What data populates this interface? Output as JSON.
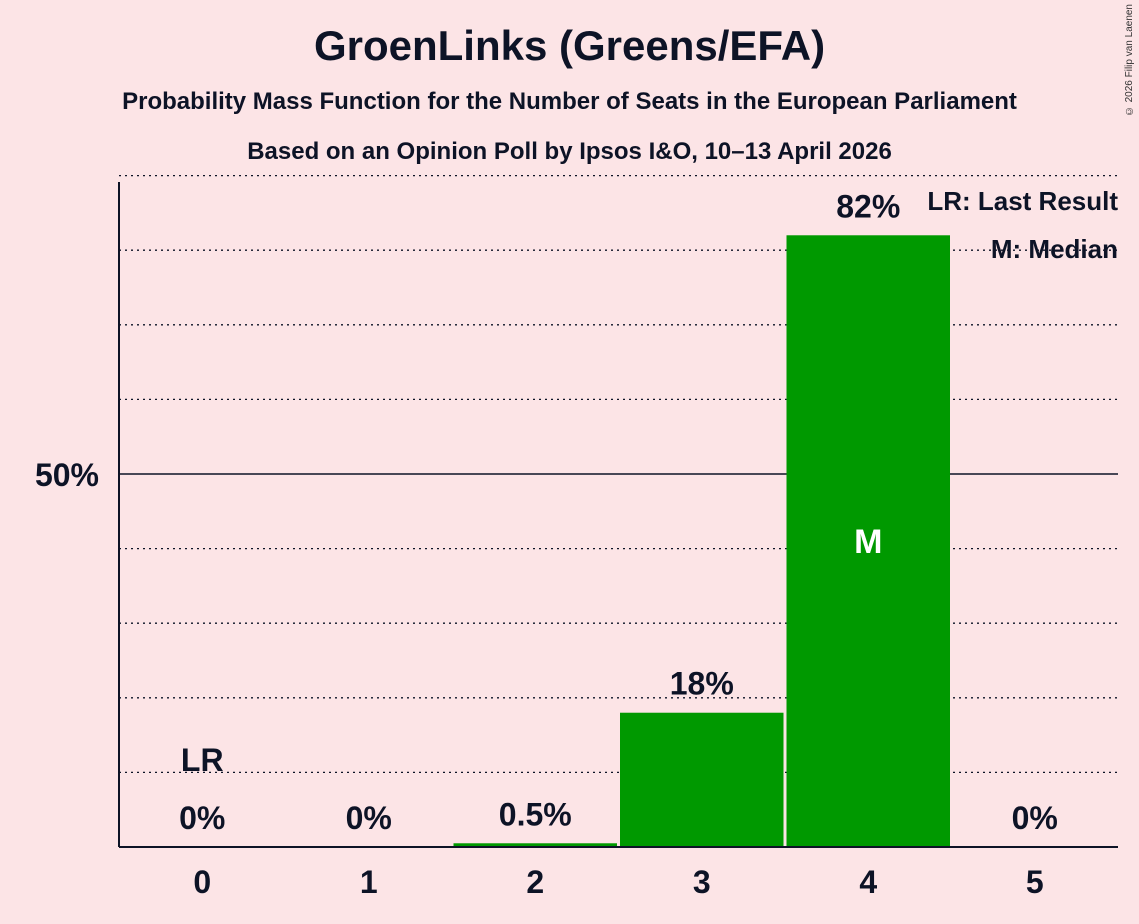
{
  "chart_data": {
    "type": "bar",
    "title": "GroenLinks (Greens/EFA)",
    "subtitle": "Probability Mass Function for the Number of Seats in the European Parliament",
    "subtitle2": "Based on an Opinion Poll by Ipsos I&O, 10–13 April 2026",
    "xlabel": "",
    "ylabel": "",
    "categories": [
      "0",
      "1",
      "2",
      "3",
      "4",
      "5"
    ],
    "values": [
      0,
      0,
      0.5,
      18,
      82,
      0
    ],
    "data_labels": [
      "0%",
      "0%",
      "0.5%",
      "18%",
      "82%",
      "0%"
    ],
    "ylim": [
      0,
      100
    ],
    "y_tick_values": [
      50
    ],
    "y_tick_labels": [
      "50%"
    ],
    "grid": "dotted every 10%",
    "last_result_index": 0,
    "last_result_marker": "LR",
    "median_index": 4,
    "median_marker": "M",
    "legend": [
      "LR: Last Result",
      "M: Median"
    ],
    "legend_placement": "top-right",
    "bar_color": "#009900",
    "text_color": "#0d1326",
    "background_color": "#fce4e6"
  },
  "copyright": "© 2026 Filip van Laenen"
}
